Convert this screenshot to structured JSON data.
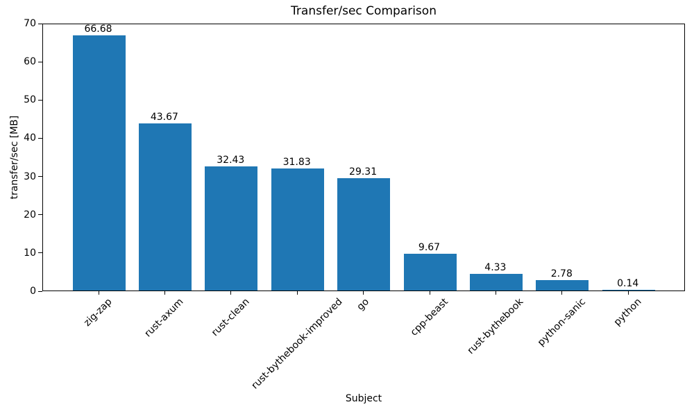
{
  "chart_data": {
    "type": "bar",
    "title": "Transfer/sec Comparison",
    "xlabel": "Subject",
    "ylabel": "transfer/sec [MB]",
    "categories": [
      "zig-zap",
      "rust-axum",
      "rust-clean",
      "rust-bythebook-improved",
      "go",
      "cpp-beast",
      "rust-bythebook",
      "python-sanic",
      "python"
    ],
    "values": [
      66.68,
      43.67,
      32.43,
      31.83,
      29.31,
      9.67,
      4.33,
      2.78,
      0.14
    ],
    "value_labels": [
      "66.68",
      "43.67",
      "32.43",
      "31.83",
      "29.31",
      "9.67",
      "4.33",
      "2.78",
      "0.14"
    ],
    "ylim": [
      0,
      70
    ],
    "yticks": [
      0,
      10,
      20,
      30,
      40,
      50,
      60,
      70
    ],
    "bar_color": "#1f77b4",
    "spine_color": "#000000",
    "grid": false,
    "legend": null,
    "x_tick_rotation": 45
  }
}
